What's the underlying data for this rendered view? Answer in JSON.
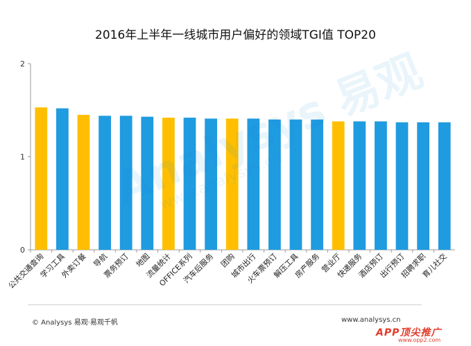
{
  "chart_data": {
    "type": "bar",
    "title": "2016年上半年一线城市用户偏好的领域TGI值 TOP20",
    "xlabel": "",
    "ylabel": "",
    "ylim": [
      0,
      2
    ],
    "yticks": [
      "0",
      "1",
      "2"
    ],
    "grid": false,
    "legend": "none",
    "categories": [
      "公共交通查询",
      "学习工具",
      "外卖订餐",
      "导航",
      "票务预订",
      "地图",
      "流量统计",
      "OFFICE系列",
      "汽车后服务",
      "团购",
      "城市出行",
      "火车票预订",
      "解压工具",
      "房产服务",
      "营业厅",
      "快递服务",
      "酒店预订",
      "出行预订",
      "招聘求职",
      "育儿社交"
    ],
    "values": [
      1.53,
      1.52,
      1.45,
      1.44,
      1.44,
      1.43,
      1.42,
      1.42,
      1.41,
      1.41,
      1.41,
      1.4,
      1.4,
      1.4,
      1.38,
      1.38,
      1.38,
      1.37,
      1.37,
      1.37
    ],
    "highlight": [
      true,
      false,
      true,
      false,
      false,
      false,
      true,
      false,
      false,
      true,
      false,
      false,
      false,
      false,
      true,
      false,
      false,
      false,
      false,
      false
    ],
    "colors": {
      "normal": "#1f9be0",
      "highlight": "#ffbf00",
      "axis": "#9a9a9a"
    }
  },
  "footer": {
    "copyright": "© Analysys 易观·易观千帆",
    "website": "www.analysys.cn"
  },
  "watermark": {
    "main": "Analysys 易观",
    "sub": "www.analysys.cn"
  },
  "corner_logo": {
    "main": "APP顶尖推广",
    "sub": "www.opp2.com"
  }
}
